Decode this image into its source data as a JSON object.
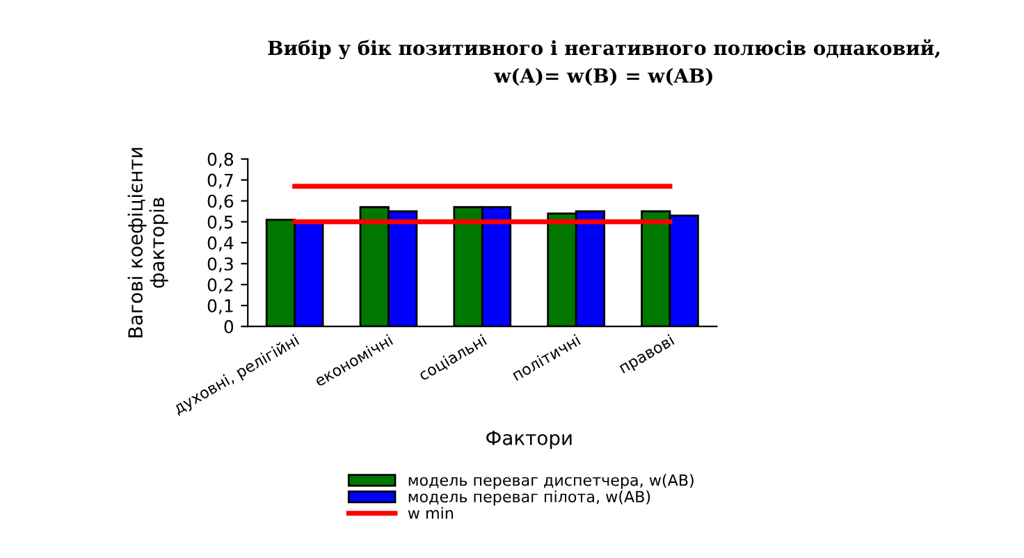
{
  "chart_data": {
    "type": "bar",
    "title": "Вибір у бік позитивного і негативного полюсів однаковий,\nw(A)= w(B) = w(AB)",
    "xlabel": "Фактори",
    "ylabel": "Вагові коефіцієнти\nфакторів",
    "categories": [
      "духовні, релігійні",
      "економічні",
      "соціальні",
      "політичні",
      "правові"
    ],
    "series": [
      {
        "name": "модель переваг диспетчера, w(AB)",
        "color": "#007800",
        "values": [
          0.51,
          0.57,
          0.57,
          0.54,
          0.55
        ]
      },
      {
        "name": "модель переваг пілота, w(AB)",
        "color": "#0000ff",
        "values": [
          0.5,
          0.55,
          0.57,
          0.55,
          0.53
        ]
      },
      {
        "name": "w min",
        "type": "line",
        "color": "#ff0000",
        "values": [
          0.5,
          0.5,
          0.5,
          0.5,
          0.5
        ]
      },
      {
        "type": "line",
        "color": "#ff0000",
        "values": [
          0.67,
          0.67,
          0.67,
          0.67,
          0.67
        ]
      }
    ],
    "ylim": [
      0,
      0.8
    ],
    "yticks": [
      0,
      {
        "value": 0.1,
        "label": "0,1"
      },
      {
        "value": 0.2,
        "label": "0,2"
      },
      {
        "value": 0.3,
        "label": "0,3"
      },
      {
        "value": 0.4,
        "label": "0,4"
      },
      {
        "value": 0.5,
        "label": "0,5"
      },
      {
        "value": 0.6,
        "label": "0,6"
      },
      {
        "value": 0.7,
        "label": "0,7"
      },
      {
        "value": 0.8,
        "label": "0,8"
      }
    ],
    "legend": "bottom",
    "grid": false
  }
}
